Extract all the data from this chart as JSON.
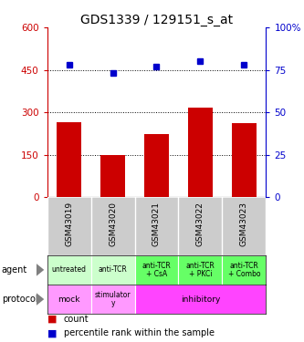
{
  "title": "GDS1339 / 129151_s_at",
  "samples": [
    "GSM43019",
    "GSM43020",
    "GSM43021",
    "GSM43022",
    "GSM43023"
  ],
  "counts": [
    265,
    148,
    222,
    318,
    262
  ],
  "percentiles": [
    78,
    73,
    77,
    80,
    78
  ],
  "ylim_left": [
    0,
    600
  ],
  "ylim_right": [
    0,
    100
  ],
  "yticks_left": [
    0,
    150,
    300,
    450,
    600
  ],
  "yticks_right": [
    0,
    25,
    50,
    75,
    100
  ],
  "bar_color": "#cc0000",
  "dot_color": "#0000cc",
  "agent_labels": [
    "untreated",
    "anti-TCR",
    "anti-TCR\n+ CsA",
    "anti-TCR\n+ PKCi",
    "anti-TCR\n+ Combo"
  ],
  "agent_colors_light": "#ccffcc",
  "agent_colors_dark": "#66ff66",
  "protocol_color_light": "#ff99ff",
  "protocol_color_dark": "#ff44ff",
  "sample_bg_color": "#cccccc",
  "legend_bar_label": "count",
  "legend_dot_label": "percentile rank within the sample",
  "title_fontsize": 10,
  "tick_fontsize": 7.5,
  "cell_fontsize": 6.5
}
